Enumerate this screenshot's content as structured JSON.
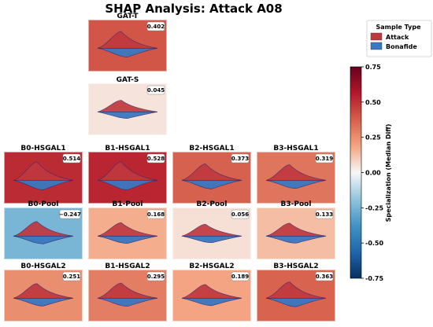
{
  "chart_data": {
    "type": "violin",
    "title": "SHAP Analysis: Attack A08",
    "legend": {
      "title": "Sample Type",
      "position": "top-right",
      "entries": [
        {
          "label": "Attack",
          "color": "#c0383f"
        },
        {
          "label": "Bonafide",
          "color": "#3a78c0"
        }
      ]
    },
    "colorbar": {
      "label": "Specialization (Median Diff)",
      "min": -0.75,
      "max": 0.75,
      "ticks": [
        "0.75",
        "0.50",
        "0.25",
        "0.00",
        "-0.25",
        "-0.50",
        "-0.75"
      ],
      "colormap": "RdBu_r"
    },
    "panels": [
      {
        "name": "GAT-T",
        "value": 0.402,
        "label": "0.402"
      },
      {
        "name": "GAT-S",
        "value": 0.045,
        "label": "0.045"
      },
      {
        "name": "B0-HSGAL1",
        "value": 0.514,
        "label": "0.514"
      },
      {
        "name": "B1-HSGAL1",
        "value": 0.528,
        "label": "0.528"
      },
      {
        "name": "B2-HSGAL1",
        "value": 0.373,
        "label": "0.373"
      },
      {
        "name": "B3-HSGAL1",
        "value": 0.319,
        "label": "0.319"
      },
      {
        "name": "B0-Pool",
        "value": -0.247,
        "label": "−0.247"
      },
      {
        "name": "B1-Pool",
        "value": 0.168,
        "label": "0.168"
      },
      {
        "name": "B2-Pool",
        "value": 0.056,
        "label": "0.056"
      },
      {
        "name": "B3-Pool",
        "value": 0.133,
        "label": "0.133"
      },
      {
        "name": "B0-HSGAL2",
        "value": 0.251,
        "label": "0.251"
      },
      {
        "name": "B1-HSGAL2",
        "value": 0.295,
        "label": "0.295"
      },
      {
        "name": "B2-HSGAL2",
        "value": 0.189,
        "label": "0.189"
      },
      {
        "name": "B3-HSGAL2",
        "value": 0.363,
        "label": "0.363"
      }
    ]
  }
}
